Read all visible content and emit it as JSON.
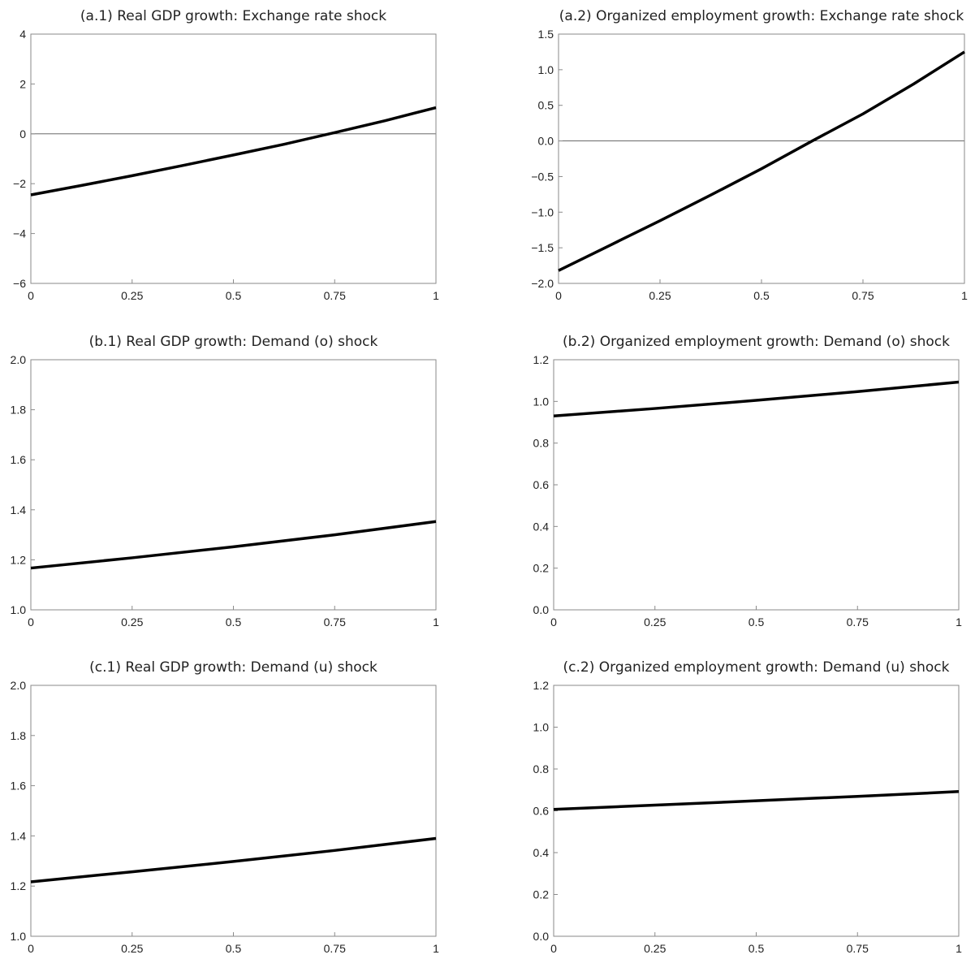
{
  "chart_data": [
    {
      "id": "a1",
      "type": "line",
      "title": "(a.1) Real GDP growth: Exchange rate shock",
      "xlim": [
        0,
        1
      ],
      "ylim": [
        -6,
        4
      ],
      "xticks": [
        0,
        0.25,
        0.5,
        0.75,
        1
      ],
      "xtick_labels": [
        "0",
        "0.25",
        "0.5",
        "0.75",
        "1"
      ],
      "yticks": [
        -6,
        -4,
        -2,
        0,
        2,
        4
      ],
      "ytick_labels": [
        "−6",
        "−4",
        "−2",
        "0",
        "2",
        "4"
      ],
      "zero_line": true,
      "series": [
        {
          "x": [
            0,
            0.125,
            0.25,
            0.375,
            0.5,
            0.625,
            0.75,
            0.875,
            1
          ],
          "y": [
            -2.45,
            -2.07,
            -1.68,
            -1.27,
            -0.85,
            -0.42,
            0.05,
            0.53,
            1.05
          ]
        }
      ]
    },
    {
      "id": "a2",
      "type": "line",
      "title": "(a.2) Organized employment growth: Exchange rate shock",
      "xlim": [
        0,
        1
      ],
      "ylim": [
        -2.0,
        1.5
      ],
      "xticks": [
        0,
        0.25,
        0.5,
        0.75,
        1
      ],
      "xtick_labels": [
        "0",
        "0.25",
        "0.5",
        "0.75",
        "1"
      ],
      "yticks": [
        -2.0,
        -1.5,
        -1.0,
        -0.5,
        0.0,
        0.5,
        1.0,
        1.5
      ],
      "ytick_labels": [
        "−2.0",
        "−1.5",
        "−1.0",
        "−0.5",
        "0.0",
        "0.5",
        "1.0",
        "1.5"
      ],
      "zero_line": true,
      "series": [
        {
          "x": [
            0,
            0.125,
            0.25,
            0.375,
            0.5,
            0.625,
            0.75,
            0.875,
            1
          ],
          "y": [
            -1.82,
            -1.47,
            -1.12,
            -0.76,
            -0.39,
            0.0,
            0.38,
            0.8,
            1.25
          ]
        }
      ]
    },
    {
      "id": "b1",
      "type": "line",
      "title": "(b.1) Real GDP growth: Demand (o) shock",
      "xlim": [
        0,
        1
      ],
      "ylim": [
        1.0,
        2.0
      ],
      "xticks": [
        0,
        0.25,
        0.5,
        0.75,
        1
      ],
      "xtick_labels": [
        "0",
        "0.25",
        "0.5",
        "0.75",
        "1"
      ],
      "yticks": [
        1.0,
        1.2,
        1.4,
        1.6,
        1.8,
        2.0
      ],
      "ytick_labels": [
        "1.0",
        "1.2",
        "1.4",
        "1.6",
        "1.8",
        "2.0"
      ],
      "zero_line": false,
      "series": [
        {
          "x": [
            0,
            0.25,
            0.5,
            0.75,
            1
          ],
          "y": [
            1.167,
            1.208,
            1.252,
            1.3,
            1.353
          ]
        }
      ]
    },
    {
      "id": "b2",
      "type": "line",
      "title": "(b.2) Organized employment growth: Demand (o) shock",
      "xlim": [
        0,
        1
      ],
      "ylim": [
        0.0,
        1.2
      ],
      "xticks": [
        0,
        0.25,
        0.5,
        0.75,
        1
      ],
      "xtick_labels": [
        "0",
        "0.25",
        "0.5",
        "0.75",
        "1"
      ],
      "yticks": [
        0.0,
        0.2,
        0.4,
        0.6,
        0.8,
        1.0,
        1.2
      ],
      "ytick_labels": [
        "0.0",
        "0.2",
        "0.4",
        "0.6",
        "0.8",
        "1.0",
        "1.2"
      ],
      "zero_line": false,
      "series": [
        {
          "x": [
            0,
            0.25,
            0.5,
            0.75,
            1
          ],
          "y": [
            0.93,
            0.966,
            1.005,
            1.047,
            1.093
          ]
        }
      ]
    },
    {
      "id": "c1",
      "type": "line",
      "title": "(c.1) Real GDP growth: Demand (u) shock",
      "xlim": [
        0,
        1
      ],
      "ylim": [
        1.0,
        2.0
      ],
      "xticks": [
        0,
        0.25,
        0.5,
        0.75,
        1
      ],
      "xtick_labels": [
        "0",
        "0.25",
        "0.5",
        "0.75",
        "1"
      ],
      "yticks": [
        1.0,
        1.2,
        1.4,
        1.6,
        1.8,
        2.0
      ],
      "ytick_labels": [
        "1.0",
        "1.2",
        "1.4",
        "1.6",
        "1.8",
        "2.0"
      ],
      "zero_line": false,
      "series": [
        {
          "x": [
            0,
            0.25,
            0.5,
            0.75,
            1
          ],
          "y": [
            1.217,
            1.257,
            1.298,
            1.342,
            1.39
          ]
        }
      ]
    },
    {
      "id": "c2",
      "type": "line",
      "title": "(c.2) Organized employment growth: Demand (u) shock",
      "xlim": [
        0,
        1
      ],
      "ylim": [
        0.0,
        1.2
      ],
      "xticks": [
        0,
        0.25,
        0.5,
        0.75,
        1
      ],
      "xtick_labels": [
        "0",
        "0.25",
        "0.5",
        "0.75",
        "1"
      ],
      "yticks": [
        0.0,
        0.2,
        0.4,
        0.6,
        0.8,
        1.0,
        1.2
      ],
      "ytick_labels": [
        "0.0",
        "0.2",
        "0.4",
        "0.6",
        "0.8",
        "1.0",
        "1.2"
      ],
      "zero_line": false,
      "series": [
        {
          "x": [
            0,
            0.25,
            0.5,
            0.75,
            1
          ],
          "y": [
            0.607,
            0.627,
            0.648,
            0.669,
            0.692
          ]
        }
      ]
    }
  ]
}
